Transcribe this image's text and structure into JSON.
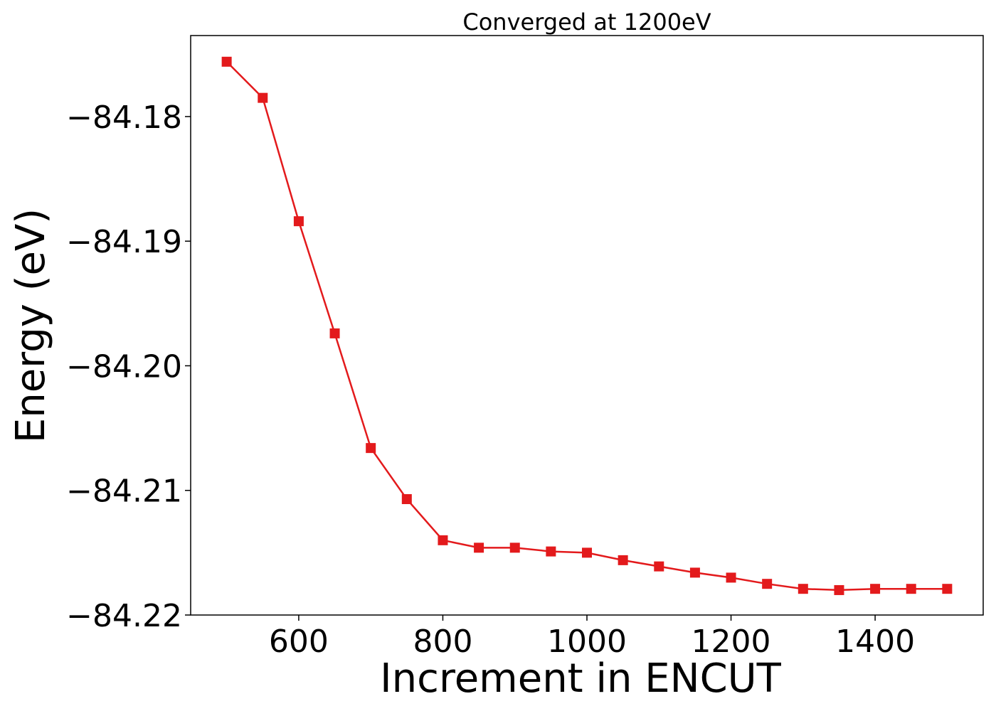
{
  "chart_data": {
    "type": "line",
    "title": "Converged at 1200eV",
    "xlabel": "Increment in ENCUT",
    "ylabel": "Energy (eV)",
    "xlim": [
      450,
      1550
    ],
    "ylim": [
      -84.22,
      -84.1735
    ],
    "xticks": [
      600,
      800,
      1000,
      1200,
      1400
    ],
    "xtick_labels": [
      "600",
      "800",
      "1000",
      "1200",
      "1400"
    ],
    "yticks": [
      -84.18,
      -84.19,
      -84.2,
      -84.21,
      -84.22
    ],
    "ytick_labels": [
      "−84.18",
      "−84.19",
      "−84.20",
      "−84.21",
      "−84.22"
    ],
    "grid": false,
    "series": [
      {
        "color": "#e31a1c",
        "marker": "square",
        "x": [
          500,
          550,
          600,
          650,
          700,
          750,
          800,
          850,
          900,
          950,
          1000,
          1050,
          1100,
          1150,
          1200,
          1250,
          1300,
          1350,
          1400,
          1450,
          1500
        ],
        "y": [
          -84.1756,
          -84.1785,
          -84.1884,
          -84.1974,
          -84.2066,
          -84.2107,
          -84.214,
          -84.2146,
          -84.2146,
          -84.2149,
          -84.215,
          -84.2156,
          -84.2161,
          -84.2166,
          -84.217,
          -84.2175,
          -84.2179,
          -84.218,
          -84.2179,
          -84.2179,
          -84.2179
        ]
      }
    ]
  }
}
